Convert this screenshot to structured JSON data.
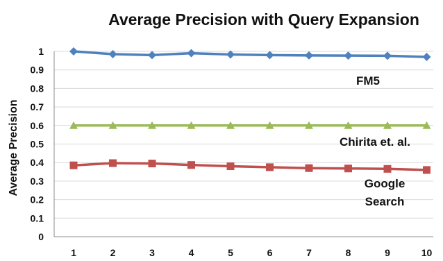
{
  "chart_data": {
    "type": "line",
    "title": "Average Precision with Query Expansion",
    "ylabel": "Average Precision",
    "xlabel": "",
    "x": [
      1,
      2,
      3,
      4,
      5,
      6,
      7,
      8,
      9,
      10
    ],
    "ylim": [
      0,
      1
    ],
    "yticks": [
      "0",
      "0.1",
      "0.2",
      "0.3",
      "0.4",
      "0.5",
      "0.6",
      "0.7",
      "0.8",
      "0.9",
      "1"
    ],
    "grid": true,
    "legend": "inline labels",
    "series": [
      {
        "name": "FM5",
        "label_lines": [
          "FM5"
        ],
        "color": "#4f81bd",
        "marker": "diamond",
        "values": [
          1.0,
          0.985,
          0.98,
          0.99,
          0.983,
          0.98,
          0.978,
          0.977,
          0.976,
          0.97
        ]
      },
      {
        "name": "Chirita et. al.",
        "label_lines": [
          "Chirita et. al."
        ],
        "color": "#9bbb59",
        "marker": "triangle",
        "values": [
          0.6,
          0.6,
          0.6,
          0.6,
          0.6,
          0.6,
          0.6,
          0.6,
          0.6,
          0.6
        ]
      },
      {
        "name": "Google Search",
        "label_lines": [
          "Google",
          "Search"
        ],
        "color": "#c0504d",
        "marker": "square",
        "values": [
          0.385,
          0.397,
          0.395,
          0.387,
          0.38,
          0.375,
          0.37,
          0.368,
          0.366,
          0.36
        ]
      }
    ]
  }
}
